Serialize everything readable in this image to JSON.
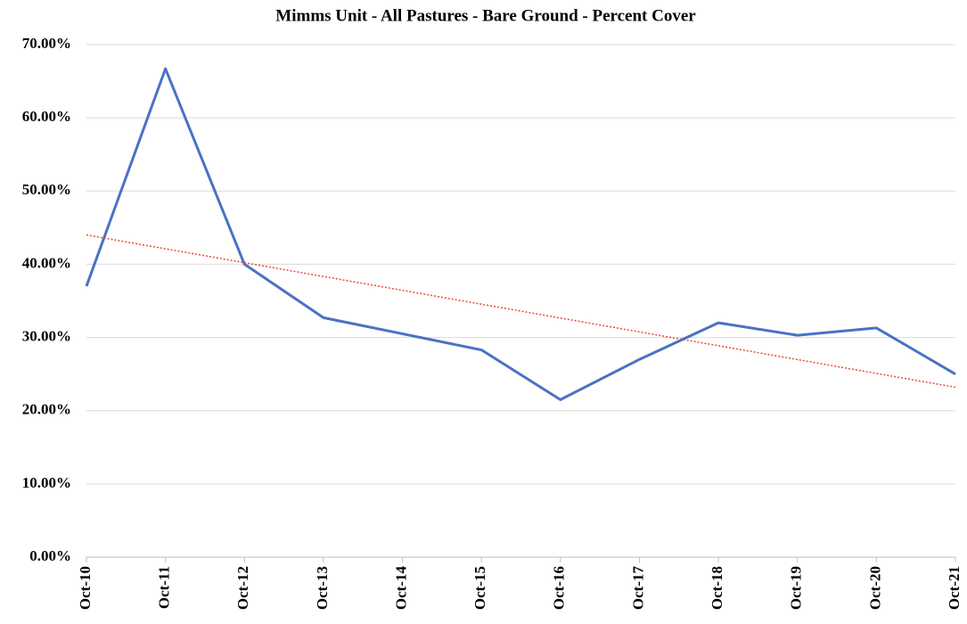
{
  "chart_data": {
    "type": "line",
    "title": "Mimms Unit - All Pastures - Bare Ground - Percent Cover",
    "categories": [
      "Oct-10",
      "Oct-11",
      "Oct-12",
      "Oct-13",
      "Oct-14",
      "Oct-15",
      "Oct-16",
      "Oct-17",
      "Oct-18",
      "Oct-19",
      "Oct-20",
      "Oct-21"
    ],
    "series": [
      {
        "color": "#4a72c4",
        "values": [
          37.0,
          66.7,
          40.0,
          32.7,
          30.5,
          28.3,
          21.5,
          27.0,
          32.0,
          30.3,
          31.3,
          25.0
        ]
      }
    ],
    "trendline": {
      "color": "#e8473b",
      "style": "dotted",
      "values": [
        44.0,
        23.2
      ]
    },
    "ylim": [
      0,
      70
    ],
    "yticks": [
      {
        "value": 0,
        "label": "0.00%"
      },
      {
        "value": 10,
        "label": "10.00%"
      },
      {
        "value": 20,
        "label": "20.00%"
      },
      {
        "value": 30,
        "label": "30.00%"
      },
      {
        "value": 40,
        "label": "40.00%"
      },
      {
        "value": 50,
        "label": "50.00%"
      },
      {
        "value": 60,
        "label": "60.00%"
      },
      {
        "value": 70,
        "label": "70.00%"
      }
    ],
    "grid": true
  }
}
